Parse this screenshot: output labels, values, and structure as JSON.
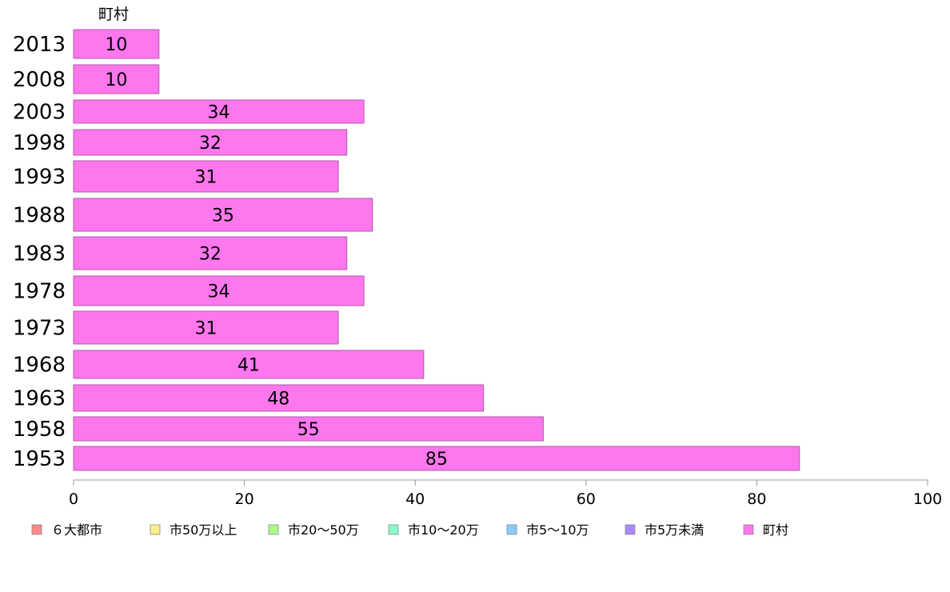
{
  "chart_data": {
    "type": "bar",
    "orientation": "horizontal",
    "top_label": "町村",
    "categories": [
      "2013",
      "2008",
      "2003",
      "1998",
      "1993",
      "1988",
      "1983",
      "1978",
      "1973",
      "1968",
      "1963",
      "1958",
      "1953"
    ],
    "series": [
      {
        "name": "町村",
        "values": [
          10,
          10,
          34,
          32,
          31,
          35,
          32,
          34,
          31,
          41,
          48,
          55,
          85
        ]
      }
    ],
    "data_labels": [
      "10",
      "10",
      "34",
      "32",
      "31",
      "35",
      "32",
      "34",
      "31",
      "41",
      "48",
      "55",
      "85"
    ],
    "xlim": [
      0,
      100
    ],
    "x_ticks": [
      "0",
      "20",
      "40",
      "60",
      "80",
      "100"
    ],
    "grid": false,
    "legend_position": "bottom",
    "legend": [
      {
        "label": "６大都市",
        "color": "#ff8888"
      },
      {
        "label": "市50万以上",
        "color": "#ffee88"
      },
      {
        "label": "市20〜50万",
        "color": "#aaff88"
      },
      {
        "label": "市10〜20万",
        "color": "#88ffcc"
      },
      {
        "label": "市5〜10万",
        "color": "#88ccff"
      },
      {
        "label": "市5万未満",
        "color": "#aa88ff"
      },
      {
        "label": "町村",
        "color": "#ff77ee"
      }
    ],
    "bar_color": "#ff77ee",
    "bar_stroke": "#b05aa8"
  }
}
